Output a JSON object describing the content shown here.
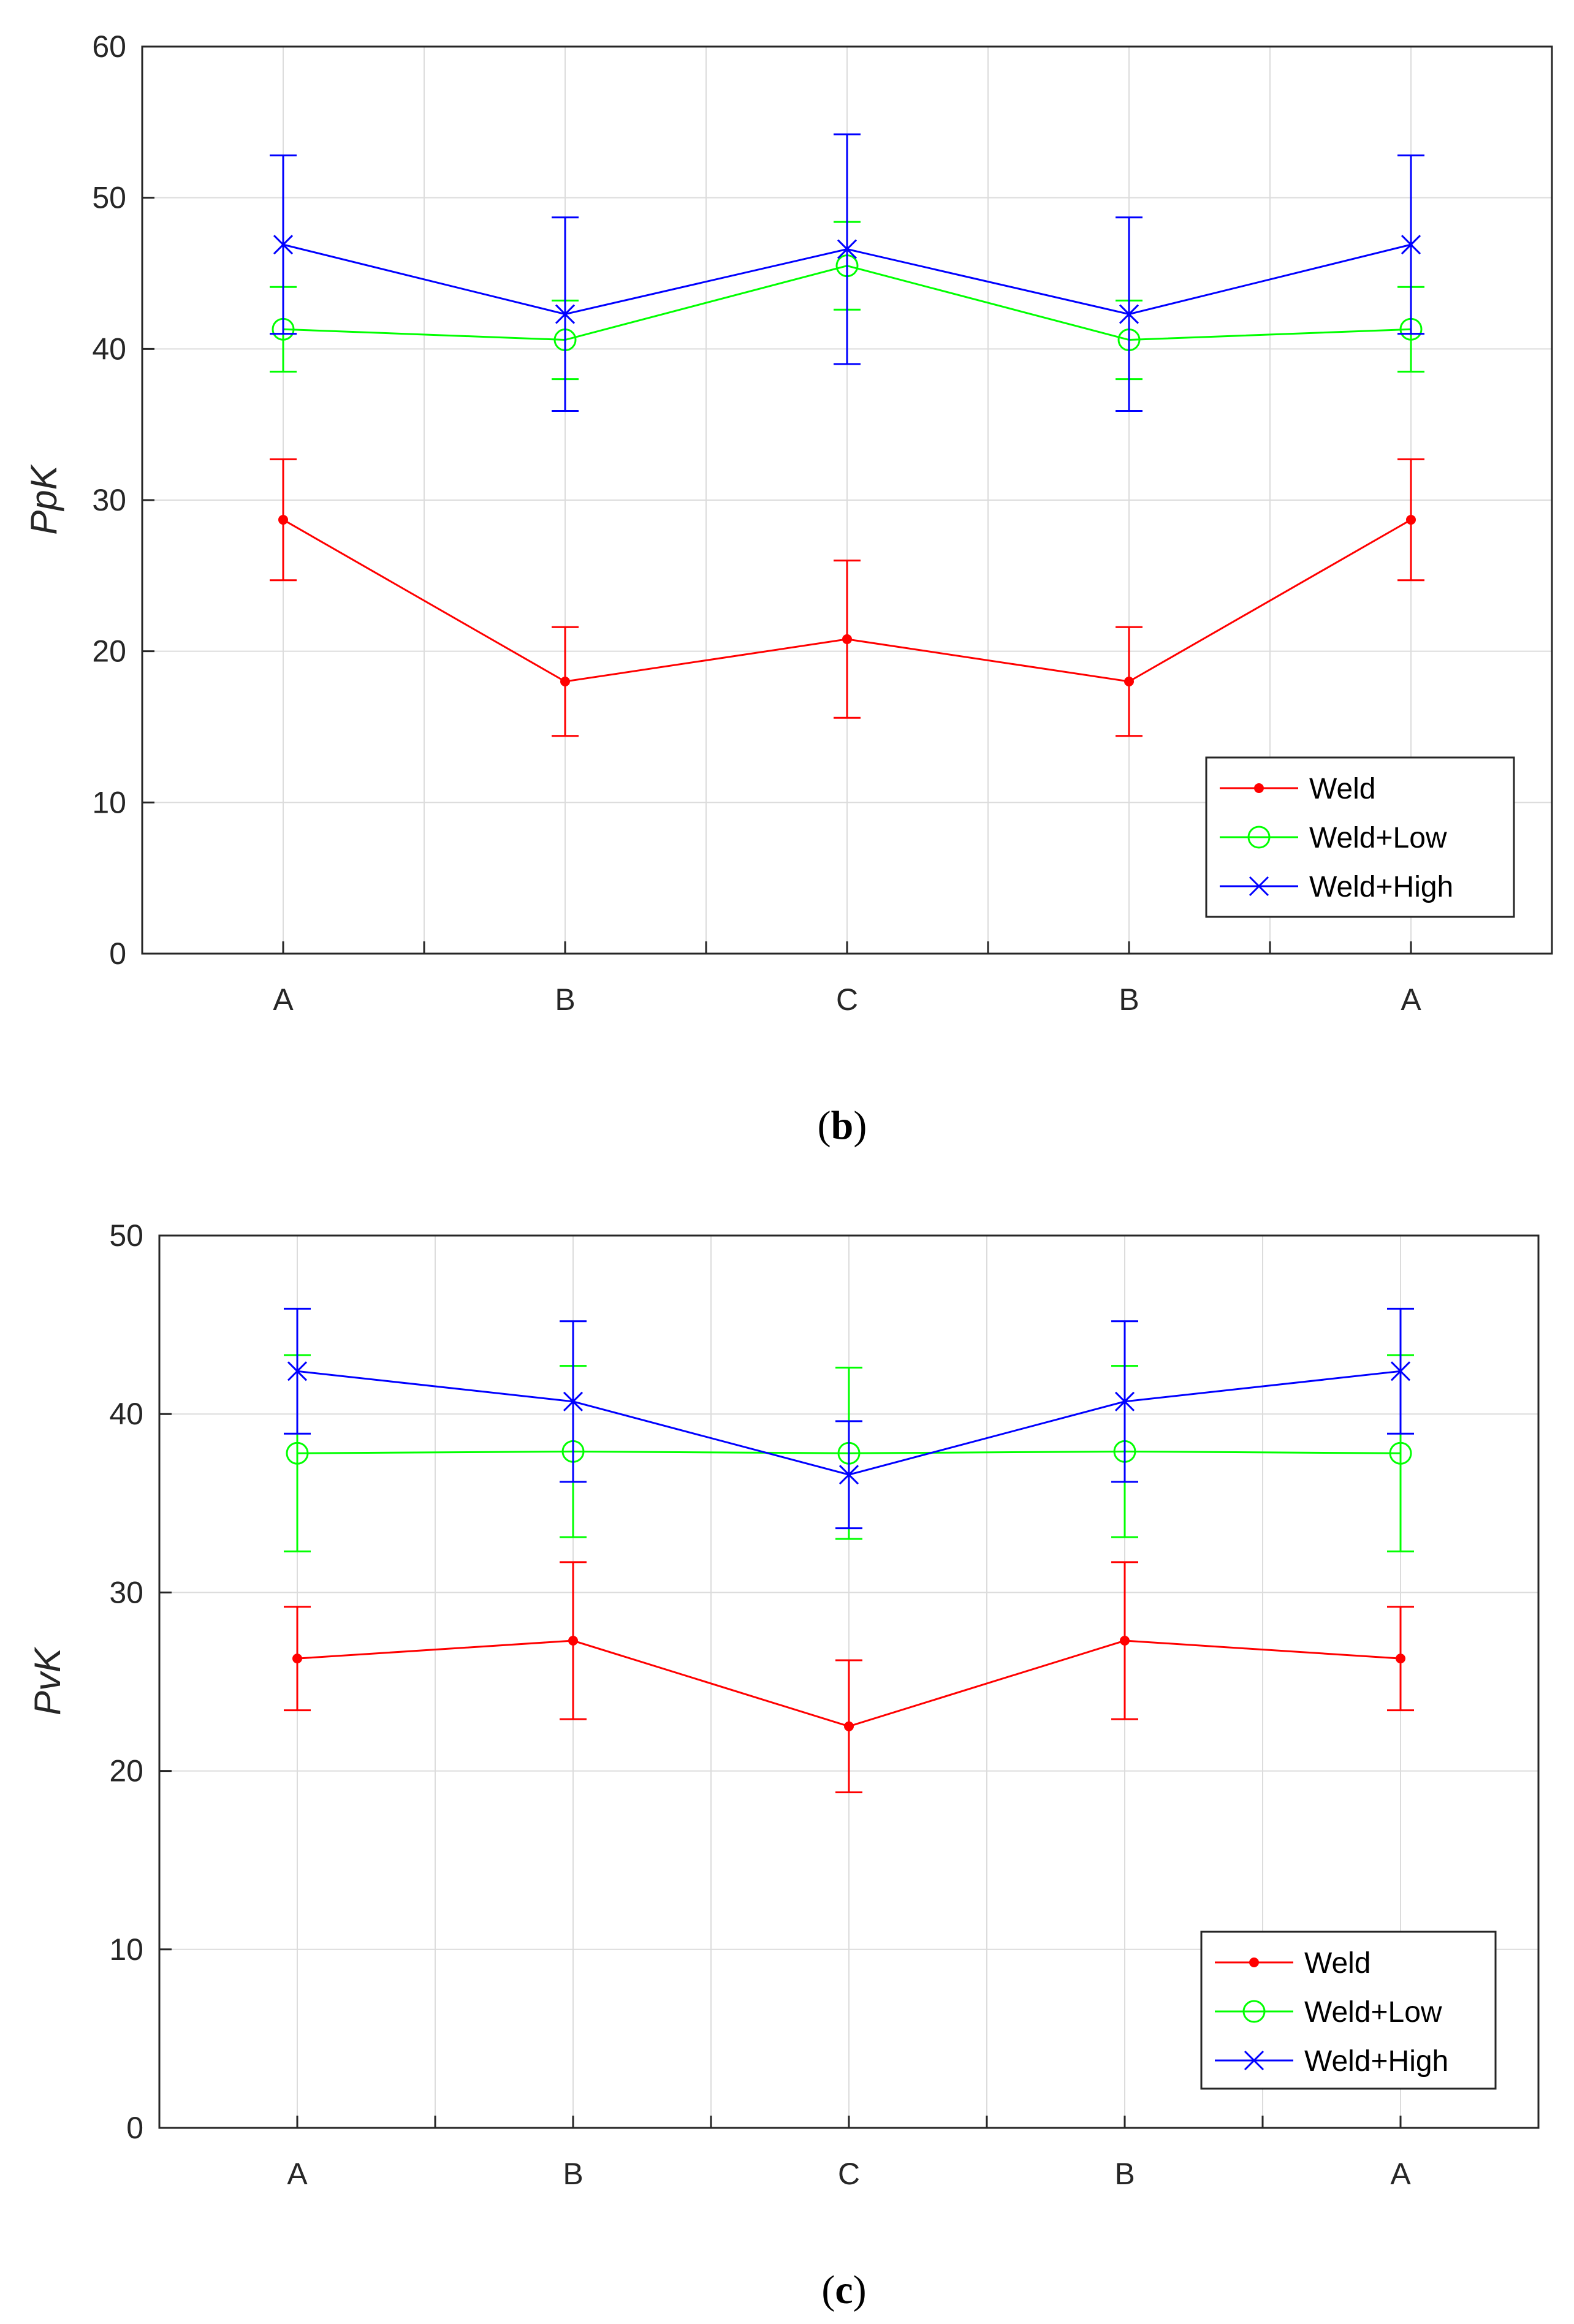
{
  "chart_data": [
    {
      "type": "line",
      "panel_label": "b",
      "ylabel": "PpK",
      "xlabel": "",
      "categories": [
        "A",
        "B",
        "C",
        "B",
        "A"
      ],
      "ylim": [
        0,
        60
      ],
      "yticks": [
        0,
        10,
        20,
        30,
        40,
        50,
        60
      ],
      "grid": true,
      "legend_position": "bottom-right",
      "series": [
        {
          "name": "Weld",
          "color": "#ff0000",
          "marker": "dot",
          "values": [
            28.7,
            18.0,
            20.8,
            18.0,
            28.7
          ],
          "errors": [
            4.0,
            3.6,
            5.2,
            3.6,
            4.0
          ]
        },
        {
          "name": "Weld+Low",
          "color": "#00ff00",
          "marker": "circle",
          "values": [
            41.3,
            40.6,
            45.5,
            40.6,
            41.3
          ],
          "errors": [
            2.8,
            2.6,
            2.9,
            2.6,
            2.8
          ]
        },
        {
          "name": "Weld+High",
          "color": "#0000ff",
          "marker": "x",
          "values": [
            46.9,
            42.3,
            46.6,
            42.3,
            46.9
          ],
          "errors": [
            5.9,
            6.4,
            7.6,
            6.4,
            5.9
          ]
        }
      ]
    },
    {
      "type": "line",
      "panel_label": "c",
      "ylabel": "PvK",
      "xlabel": "",
      "categories": [
        "A",
        "B",
        "C",
        "B",
        "A"
      ],
      "ylim": [
        0,
        50
      ],
      "yticks": [
        0,
        10,
        20,
        30,
        40,
        50
      ],
      "grid": true,
      "legend_position": "bottom-right",
      "series": [
        {
          "name": "Weld",
          "color": "#ff0000",
          "marker": "dot",
          "values": [
            26.3,
            27.3,
            22.5,
            27.3,
            26.3
          ],
          "errors": [
            2.9,
            4.4,
            3.7,
            4.4,
            2.9
          ]
        },
        {
          "name": "Weld+Low",
          "color": "#00ff00",
          "marker": "circle",
          "values": [
            37.8,
            37.9,
            37.8,
            37.9,
            37.8
          ],
          "errors": [
            5.5,
            4.8,
            4.8,
            4.8,
            5.5
          ]
        },
        {
          "name": "Weld+High",
          "color": "#0000ff",
          "marker": "x",
          "values": [
            42.4,
            40.7,
            36.6,
            40.7,
            42.4
          ],
          "errors": [
            3.5,
            4.5,
            3.0,
            4.5,
            3.5
          ]
        }
      ]
    }
  ]
}
